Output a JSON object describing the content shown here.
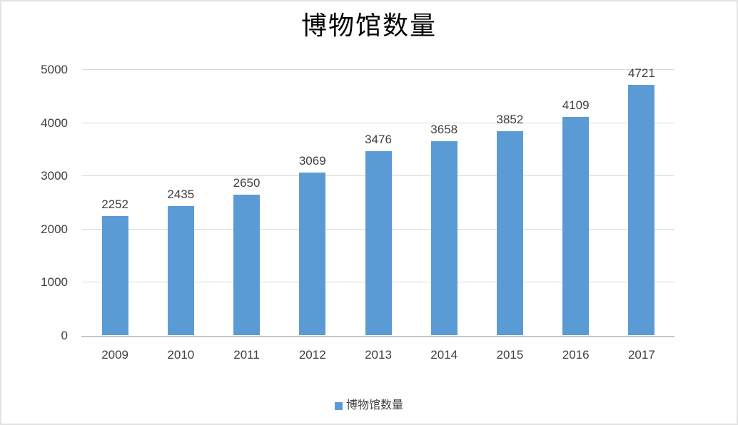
{
  "chart_data": {
    "type": "bar",
    "title": "博物馆数量",
    "categories": [
      "2009",
      "2010",
      "2011",
      "2012",
      "2013",
      "2014",
      "2015",
      "2016",
      "2017"
    ],
    "series": [
      {
        "name": "博物馆数量",
        "values": [
          2252,
          2435,
          2650,
          3069,
          3476,
          3658,
          3852,
          4109,
          4721
        ]
      }
    ],
    "data_labels_shown": true,
    "xlabel": "",
    "ylabel": "",
    "ylim": [
      0,
      5000
    ],
    "yticks": [
      0,
      1000,
      2000,
      3000,
      4000,
      5000
    ],
    "grid": "horizontal",
    "legend_position": "bottom",
    "bar_color": "#5b9bd5"
  },
  "legend": {
    "swatch_color": "#5b9bd5",
    "label": "博物馆数量"
  },
  "colors": {
    "bar": "#5b9bd5",
    "gridline": "#d9d9d9",
    "axis_line": "#c6c6c6",
    "tick_text": "#404040",
    "title_text": "#000000",
    "frame_border": "#e2e2e2",
    "background": "#ffffff"
  }
}
